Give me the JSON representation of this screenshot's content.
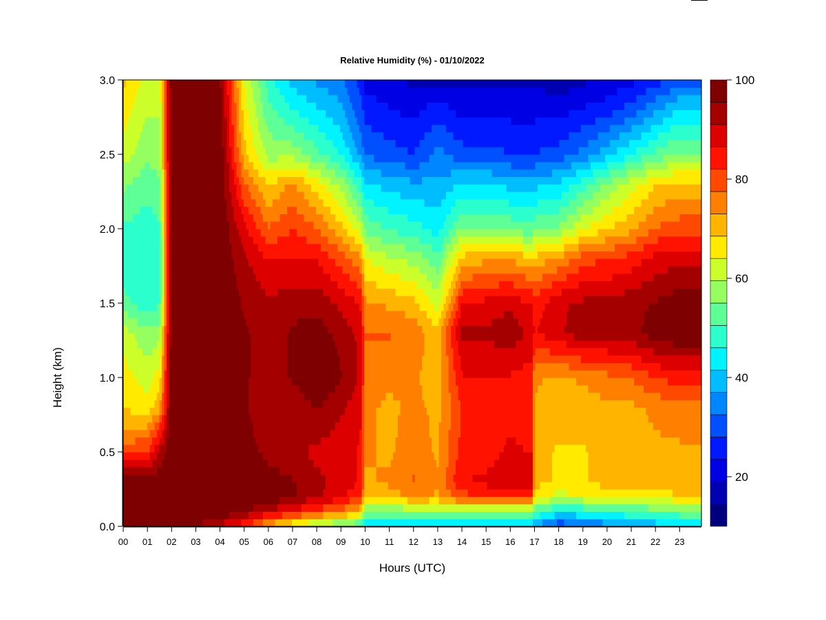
{
  "chart_data": {
    "type": "heatmap",
    "title": "Relative Humidity (%) - 01/10/2022",
    "xlabel": "Hours (UTC)",
    "ylabel": "Height (km)",
    "x_ticks": [
      "00",
      "01",
      "02",
      "03",
      "04",
      "05",
      "06",
      "07",
      "08",
      "09",
      "10",
      "11",
      "12",
      "13",
      "14",
      "15",
      "16",
      "17",
      "18",
      "19",
      "20",
      "21",
      "22",
      "23"
    ],
    "y_ticks": [
      "0.0",
      "0.5",
      "1.0",
      "1.5",
      "2.0",
      "2.5",
      "3.0"
    ],
    "xlim": [
      0,
      23.9
    ],
    "ylim": [
      0,
      3.0
    ],
    "colorbar": {
      "min": 10,
      "max": 100,
      "ticks": [
        "20",
        "40",
        "60",
        "80",
        "100"
      ],
      "tick_values": [
        20,
        40,
        60,
        80,
        100
      ],
      "colors": [
        "#00007f",
        "#0000b2",
        "#0000e5",
        "#0019ff",
        "#0050ff",
        "#0086ff",
        "#00bdff",
        "#00f3ff",
        "#2affcd",
        "#5fff97",
        "#96ff60",
        "#ccff2a",
        "#ffea00",
        "#ffb500",
        "#ff7f00",
        "#ff4900",
        "#ff1300",
        "#dc0000",
        "#a50000",
        "#7f0000"
      ]
    },
    "heights_km": [
      0.0,
      0.1,
      0.2,
      0.3,
      0.5,
      0.8,
      1.0,
      1.3,
      1.5,
      1.8,
      2.0,
      2.3,
      2.5,
      2.8,
      3.0
    ],
    "series": [
      {
        "hour": 0.0,
        "rh": [
          95,
          100,
          100,
          98,
          80,
          68,
          66,
          62,
          52,
          48,
          50,
          56,
          62,
          66,
          70
        ]
      },
      {
        "hour": 1.0,
        "rh": [
          96,
          100,
          100,
          98,
          82,
          66,
          62,
          56,
          48,
          46,
          48,
          52,
          56,
          60,
          62
        ]
      },
      {
        "hour": 1.5,
        "rh": [
          96,
          100,
          100,
          100,
          92,
          72,
          66,
          58,
          50,
          48,
          50,
          54,
          58,
          60,
          62
        ]
      },
      {
        "hour": 2.0,
        "rh": [
          96,
          100,
          100,
          100,
          100,
          100,
          100,
          100,
          100,
          100,
          100,
          100,
          100,
          100,
          100
        ]
      },
      {
        "hour": 3.0,
        "rh": [
          96,
          100,
          100,
          100,
          100,
          100,
          100,
          100,
          100,
          100,
          100,
          100,
          100,
          100,
          100
        ]
      },
      {
        "hour": 4.0,
        "rh": [
          90,
          100,
          100,
          100,
          100,
          100,
          100,
          100,
          100,
          100,
          100,
          100,
          100,
          98,
          96
        ]
      },
      {
        "hour": 5.0,
        "rh": [
          82,
          96,
          100,
          100,
          98,
          96,
          96,
          96,
          95,
          92,
          88,
          78,
          70,
          66,
          64
        ]
      },
      {
        "hour": 6.0,
        "rh": [
          70,
          90,
          100,
          98,
          94,
          92,
          94,
          94,
          92,
          86,
          78,
          68,
          58,
          52,
          48
        ]
      },
      {
        "hour": 7.0,
        "rh": [
          62,
          86,
          96,
          96,
          92,
          92,
          96,
          96,
          94,
          86,
          82,
          74,
          58,
          46,
          40
        ]
      },
      {
        "hour": 8.0,
        "rh": [
          56,
          80,
          92,
          92,
          90,
          96,
          100,
          98,
          94,
          86,
          78,
          66,
          52,
          42,
          36
        ]
      },
      {
        "hour": 9.0,
        "rh": [
          52,
          76,
          88,
          90,
          88,
          92,
          96,
          94,
          90,
          80,
          70,
          58,
          46,
          38,
          34
        ]
      },
      {
        "hour": 9.8,
        "rh": [
          48,
          70,
          82,
          86,
          86,
          88,
          90,
          90,
          86,
          74,
          62,
          48,
          36,
          30,
          26
        ]
      },
      {
        "hour": 10.0,
        "rh": [
          42,
          56,
          70,
          72,
          74,
          74,
          76,
          78,
          74,
          64,
          54,
          42,
          32,
          26,
          22
        ]
      },
      {
        "hour": 11.0,
        "rh": [
          40,
          54,
          70,
          74,
          72,
          72,
          74,
          78,
          72,
          60,
          50,
          40,
          30,
          24,
          20
        ]
      },
      {
        "hour": 12.0,
        "rh": [
          40,
          56,
          74,
          78,
          76,
          74,
          74,
          76,
          70,
          58,
          48,
          38,
          28,
          22,
          18
        ]
      },
      {
        "hour": 13.0,
        "rh": [
          40,
          56,
          72,
          74,
          72,
          72,
          70,
          70,
          62,
          52,
          44,
          38,
          34,
          26,
          18
        ]
      },
      {
        "hour": 14.0,
        "rh": [
          38,
          58,
          80,
          86,
          84,
          82,
          86,
          92,
          86,
          70,
          56,
          42,
          30,
          22,
          18
        ]
      },
      {
        "hour": 15.0,
        "rh": [
          38,
          56,
          82,
          88,
          84,
          82,
          86,
          92,
          88,
          72,
          56,
          42,
          30,
          22,
          18
        ]
      },
      {
        "hour": 16.0,
        "rh": [
          38,
          56,
          82,
          90,
          88,
          84,
          86,
          94,
          90,
          72,
          54,
          40,
          28,
          22,
          18
        ]
      },
      {
        "hour": 16.9,
        "rh": [
          38,
          56,
          84,
          90,
          86,
          82,
          84,
          90,
          86,
          70,
          52,
          40,
          28,
          22,
          18
        ]
      },
      {
        "hour": 17.0,
        "rh": [
          36,
          52,
          66,
          70,
          70,
          72,
          74,
          86,
          84,
          70,
          54,
          40,
          28,
          22,
          18
        ]
      },
      {
        "hour": 18.0,
        "rh": [
          28,
          44,
          62,
          68,
          68,
          70,
          72,
          90,
          90,
          74,
          56,
          42,
          30,
          22,
          16
        ]
      },
      {
        "hour": 19.0,
        "rh": [
          30,
          46,
          64,
          68,
          68,
          70,
          74,
          94,
          92,
          80,
          64,
          48,
          34,
          24,
          18
        ]
      },
      {
        "hour": 20.0,
        "rh": [
          34,
          48,
          66,
          70,
          70,
          72,
          76,
          94,
          92,
          82,
          68,
          56,
          40,
          26,
          20
        ]
      },
      {
        "hour": 21.0,
        "rh": [
          36,
          50,
          66,
          70,
          70,
          72,
          78,
          94,
          94,
          84,
          72,
          62,
          46,
          30,
          22
        ]
      },
      {
        "hour": 22.0,
        "rh": [
          38,
          52,
          66,
          72,
          72,
          74,
          82,
          98,
          96,
          88,
          78,
          68,
          52,
          36,
          26
        ]
      },
      {
        "hour": 23.0,
        "rh": [
          40,
          54,
          68,
          72,
          72,
          76,
          84,
          100,
          98,
          90,
          80,
          70,
          56,
          42,
          30
        ]
      },
      {
        "hour": 23.9,
        "rh": [
          40,
          54,
          68,
          72,
          72,
          76,
          84,
          100,
          98,
          90,
          80,
          70,
          56,
          42,
          30
        ]
      }
    ]
  }
}
